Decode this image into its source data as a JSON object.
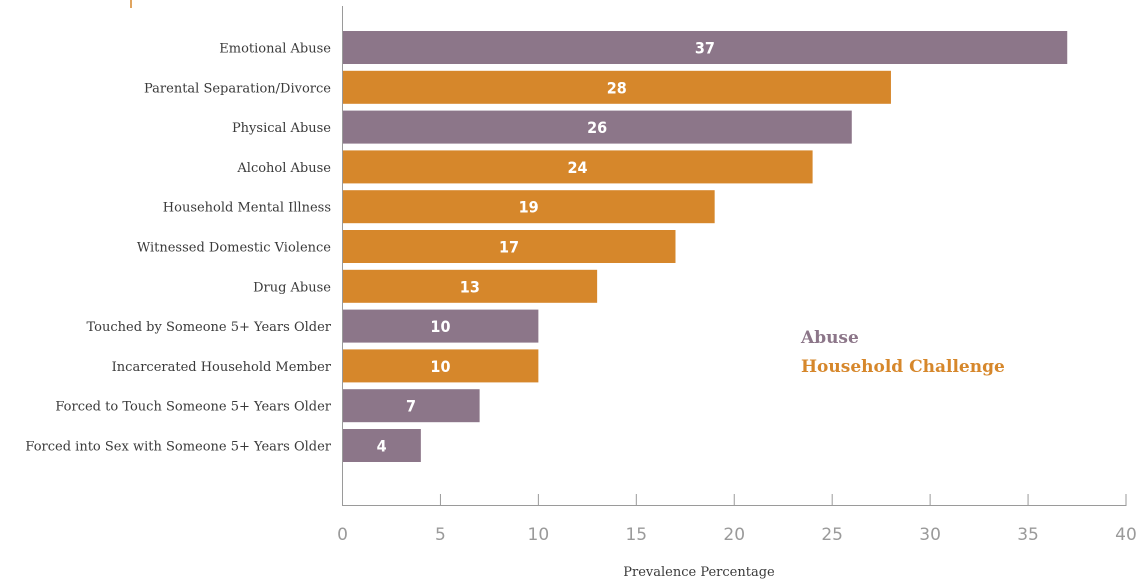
{
  "chart_data": {
    "type": "bar",
    "orientation": "horizontal",
    "categories": [
      "Emotional Abuse",
      "Parental Separation/Divorce",
      "Physical Abuse",
      "Alcohol Abuse",
      "Household Mental Illness",
      "Witnessed Domestic Violence",
      "Drug Abuse",
      "Touched by Someone 5+ Years Older",
      "Incarcerated Household Member",
      "Forced to Touch Someone 5+ Years Older",
      "Forced into Sex with Someone 5+ Years Older"
    ],
    "values": [
      37,
      28,
      26,
      24,
      19,
      17,
      13,
      10,
      10,
      7,
      4
    ],
    "groups": [
      "Abuse",
      "Household Challenge",
      "Abuse",
      "Household Challenge",
      "Household Challenge",
      "Household Challenge",
      "Household Challenge",
      "Abuse",
      "Household Challenge",
      "Abuse",
      "Abuse"
    ],
    "legend": [
      {
        "name": "Abuse",
        "color": "#8c7689"
      },
      {
        "name": "Household Challenge",
        "color": "#d6872b"
      }
    ],
    "legend_placement": "right",
    "title": "",
    "xlabel": "Prevalence Percentage",
    "ylabel": "",
    "xlim": [
      0,
      40
    ],
    "xticks": [
      0,
      5,
      10,
      15,
      20,
      25,
      30,
      35,
      40
    ],
    "grid": false
  }
}
